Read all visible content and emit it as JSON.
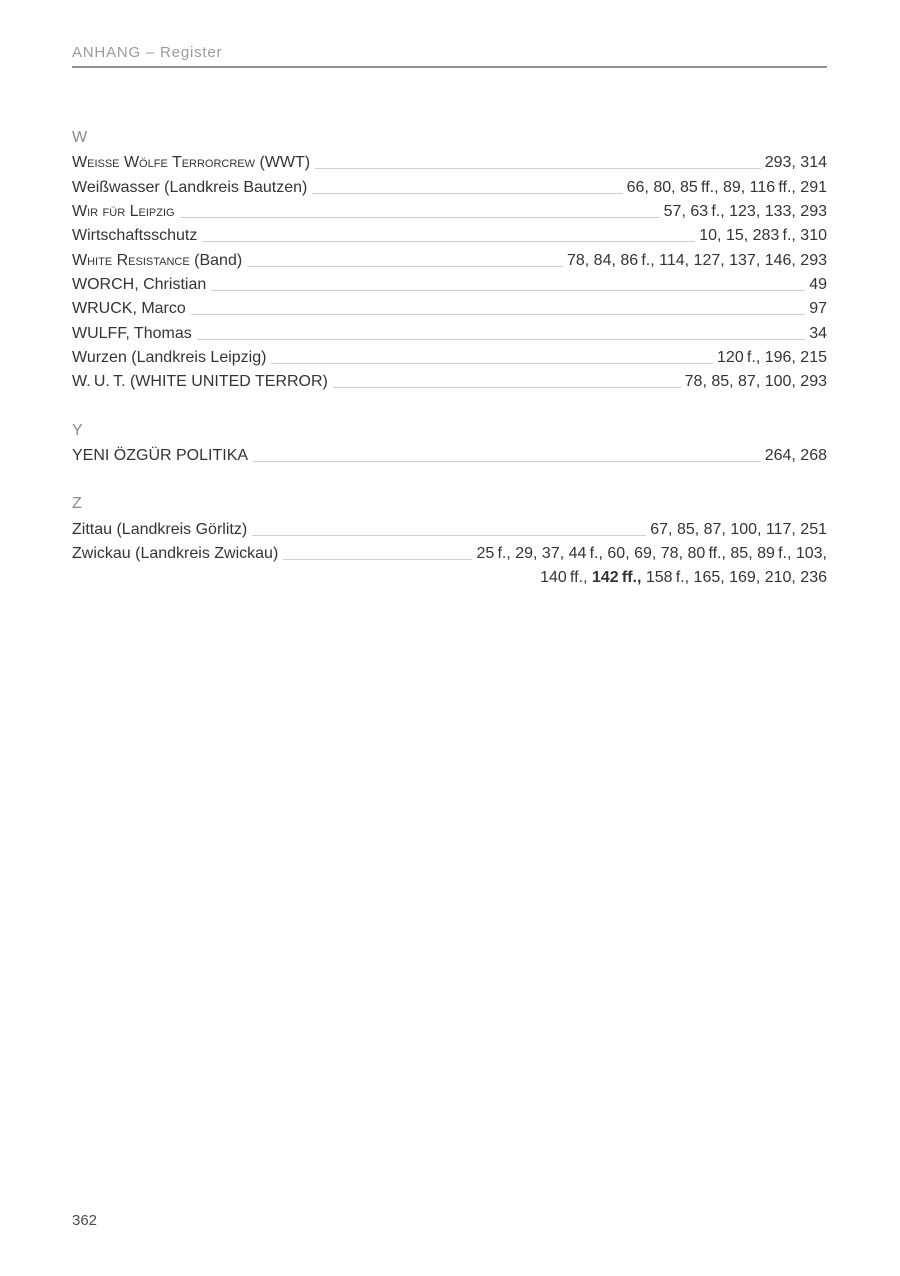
{
  "header": {
    "running_title": "ANHANG – Register"
  },
  "footer": {
    "page_number": "362"
  },
  "index": {
    "sections": [
      {
        "letter": "W",
        "entries": [
          {
            "label": [
              {
                "text": "Weisse Wölfe Terrorcrew",
                "smallcaps": true
              },
              {
                "text": " (WWT)"
              }
            ],
            "pages": [
              {
                "text": "293, 314"
              }
            ]
          },
          {
            "label": [
              {
                "text": "Weißwasser (Landkreis Bautzen)"
              }
            ],
            "pages": [
              {
                "text": "66, 80, 85 ff., 89, 116 ff., 291"
              }
            ]
          },
          {
            "label": [
              {
                "text": "Wir für Leipzig",
                "smallcaps": true
              }
            ],
            "pages": [
              {
                "text": "57, 63 f., 123, 133, 293"
              }
            ]
          },
          {
            "label": [
              {
                "text": "Wirtschaftsschutz"
              }
            ],
            "pages": [
              {
                "text": "10, 15, 283 f., 310"
              }
            ]
          },
          {
            "label": [
              {
                "text": "White Resistance",
                "smallcaps": true
              },
              {
                "text": " (Band)"
              }
            ],
            "pages": [
              {
                "text": "78, 84, 86 f., 114, 127, 137, 146, 293"
              }
            ]
          },
          {
            "label": [
              {
                "text": "WORCH, Christian"
              }
            ],
            "pages": [
              {
                "text": "49"
              }
            ]
          },
          {
            "label": [
              {
                "text": "WRUCK, Marco"
              }
            ],
            "pages": [
              {
                "text": "97"
              }
            ]
          },
          {
            "label": [
              {
                "text": "WULFF, Thomas"
              }
            ],
            "pages": [
              {
                "text": "34"
              }
            ]
          },
          {
            "label": [
              {
                "text": "Wurzen (Landkreis Leipzig)"
              }
            ],
            "pages": [
              {
                "text": "120 f., 196, 215"
              }
            ]
          },
          {
            "label": [
              {
                "text": "W. U. T. (WHITE UNITED TERROR)"
              }
            ],
            "pages": [
              {
                "text": "78, 85, 87, 100, 293"
              }
            ]
          }
        ]
      },
      {
        "letter": "Y",
        "entries": [
          {
            "label": [
              {
                "text": "YENI ÖZGÜR POLITIKA"
              }
            ],
            "pages": [
              {
                "text": "264, 268"
              }
            ]
          }
        ]
      },
      {
        "letter": "Z",
        "entries": [
          {
            "label": [
              {
                "text": "Zittau (Landkreis Görlitz)"
              }
            ],
            "pages": [
              {
                "text": "67, 85, 87, 100, 117, 251"
              }
            ]
          },
          {
            "label": [
              {
                "text": "Zwickau (Landkreis Zwickau)"
              }
            ],
            "pages": [
              {
                "text": "25 f., 29, 37, 44 f., 60, 69, 78, 80 ff., 85, 89 f., 103,"
              },
              {
                "break": true
              },
              {
                "text": "140 ff., "
              },
              {
                "text": "142 ff.,",
                "bold": true
              },
              {
                "text": " 158 f., 165, 169, 210, 236"
              }
            ]
          }
        ]
      }
    ]
  }
}
